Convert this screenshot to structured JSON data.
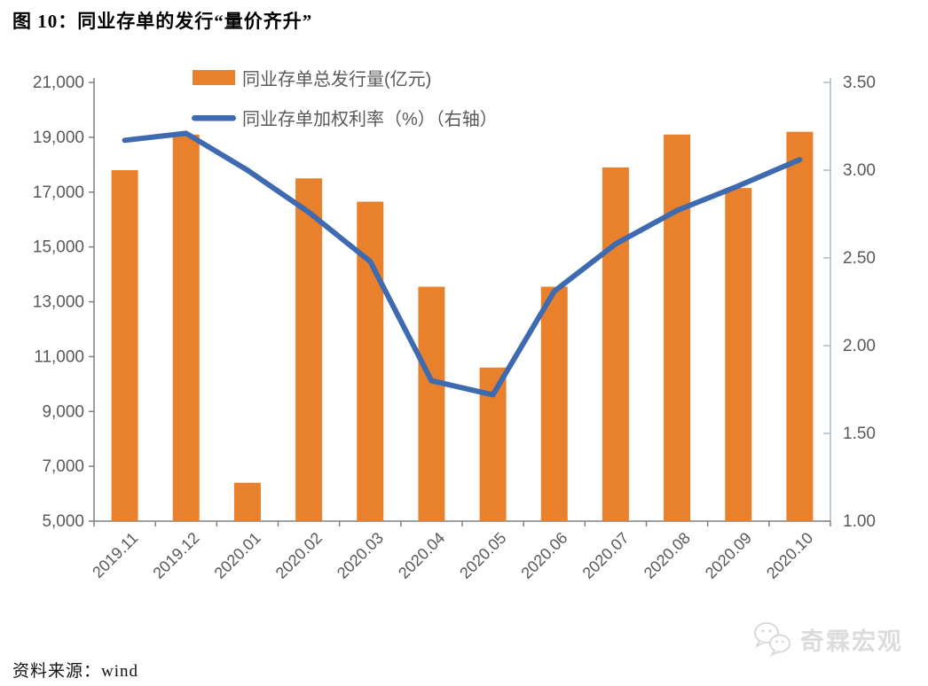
{
  "title": "图 10：同业存单的发行“量价齐升”",
  "footer": {
    "source_label": "资料来源：wind"
  },
  "watermark": {
    "brand": "奇霖宏观",
    "icon": "wechat-bubbles-icon"
  },
  "colors": {
    "bar": "#E8802C",
    "line": "#3E6AB0",
    "axis": "#808080",
    "right_axis": "#A9BCCB",
    "tick_label": "#595959",
    "legend_label": "#595959"
  },
  "chart_data": {
    "type": "bar",
    "subtype": "combo-bar-line",
    "categories": [
      "2019.11",
      "2019.12",
      "2020.01",
      "2020.02",
      "2020.03",
      "2020.04",
      "2020.05",
      "2020.06",
      "2020.07",
      "2020.08",
      "2020.09",
      "2020.10"
    ],
    "series": [
      {
        "name": "同业存单总发行量(亿元)",
        "type": "bar",
        "axis": "left",
        "values": [
          17800,
          19100,
          6400,
          17500,
          16650,
          13550,
          10600,
          13550,
          17900,
          19100,
          17150,
          19200
        ]
      },
      {
        "name": "同业存单加权利率（%）（右轴）",
        "type": "line",
        "axis": "right",
        "values": [
          3.17,
          3.21,
          3.0,
          2.76,
          2.48,
          1.8,
          1.72,
          2.31,
          2.58,
          2.77,
          2.91,
          3.06
        ]
      }
    ],
    "left_axis": {
      "min": 5000,
      "max": 21000,
      "tick_labels": [
        "21,000",
        "19,000",
        "17,000",
        "15,000",
        "13,000",
        "11,000",
        "9,000",
        "7,000",
        "5,000"
      ]
    },
    "right_axis": {
      "min": 1.0,
      "max": 3.5,
      "tick_labels": [
        "3.50",
        "3.00",
        "2.50",
        "2.00",
        "1.50",
        "1.00"
      ]
    },
    "legend_position": "top",
    "grid": false
  }
}
